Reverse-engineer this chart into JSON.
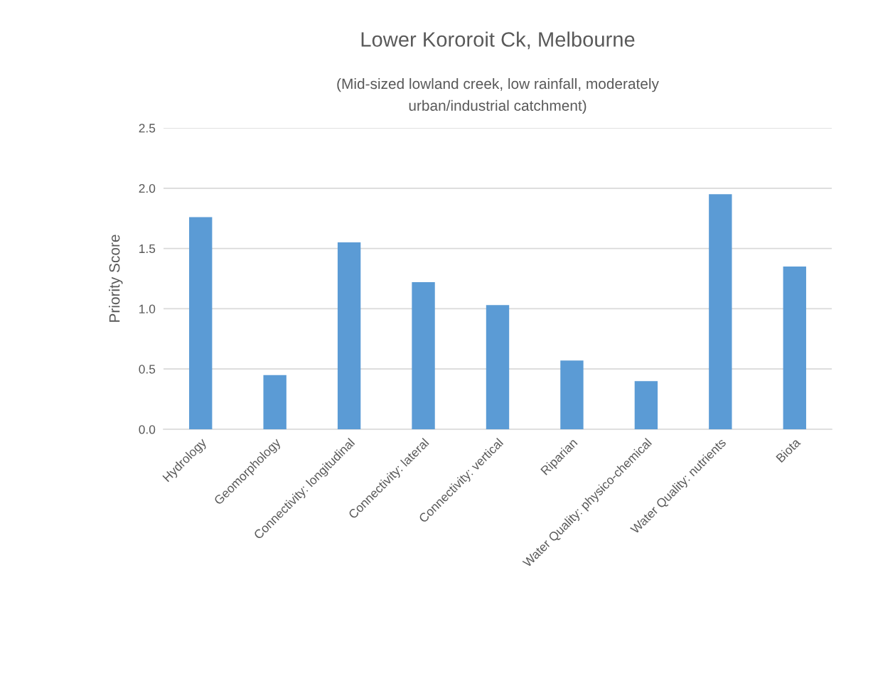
{
  "chart_data": {
    "type": "bar",
    "title": "Lower Kororoit Ck, Melbourne",
    "subtitle": "(Mid-sized lowland creek, low rainfall, moderately\nurban/industrial catchment)",
    "ylabel": "Priority Score",
    "categories": [
      "Hydrology",
      "Geomorphology",
      "Connectivity: longitudinal",
      "Connectivity: lateral",
      "Connectivity: vertical",
      "Riparian",
      "Water Quality: physico-chemical",
      "Water Quality: nutrients",
      "Biota"
    ],
    "values": [
      1.76,
      0.45,
      1.55,
      1.22,
      1.03,
      0.57,
      0.4,
      1.95,
      1.35
    ],
    "color": "#5b9bd5",
    "ylim": [
      0,
      2.5
    ],
    "yticks": [
      {
        "value": 0,
        "label": "0.0"
      },
      {
        "value": 0.5,
        "label": "0.5"
      },
      {
        "value": 1.0,
        "label": "1.0"
      },
      {
        "value": 1.5,
        "label": "1.5"
      },
      {
        "value": 2.0,
        "label": "2.0"
      },
      {
        "value": 2.5,
        "label": "2.5"
      }
    ],
    "grid": "y"
  }
}
